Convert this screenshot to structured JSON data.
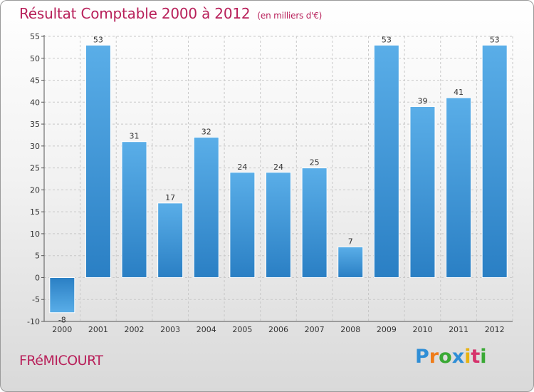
{
  "header": {
    "title": "Résultat Comptable 2000 à 2012",
    "subtitle": "(en milliers d'€)"
  },
  "footer": {
    "commune": "FRéMICOURT",
    "logo_letters": [
      "P",
      "r",
      "o",
      "x",
      "i",
      "t",
      "i"
    ]
  },
  "colors": {
    "accent": "#b8205a",
    "bar_top": "#5aaee8",
    "bar_bottom": "#2a7fc4"
  },
  "chart_data": {
    "type": "bar",
    "categories": [
      "2000",
      "2001",
      "2002",
      "2003",
      "2004",
      "2005",
      "2006",
      "2007",
      "2008",
      "2009",
      "2010",
      "2011",
      "2012"
    ],
    "values": [
      -8,
      53,
      31,
      17,
      32,
      24,
      24,
      25,
      7,
      53,
      39,
      41,
      53
    ],
    "title": "Résultat Comptable 2000 à 2012",
    "subtitle": "(en milliers d'€)",
    "xlabel": "",
    "ylabel": "",
    "ylim": [
      -10,
      55
    ],
    "yticks": [
      -10,
      -5,
      0,
      5,
      10,
      15,
      20,
      25,
      30,
      35,
      40,
      45,
      50,
      55
    ],
    "grid": true,
    "legend": "none"
  }
}
